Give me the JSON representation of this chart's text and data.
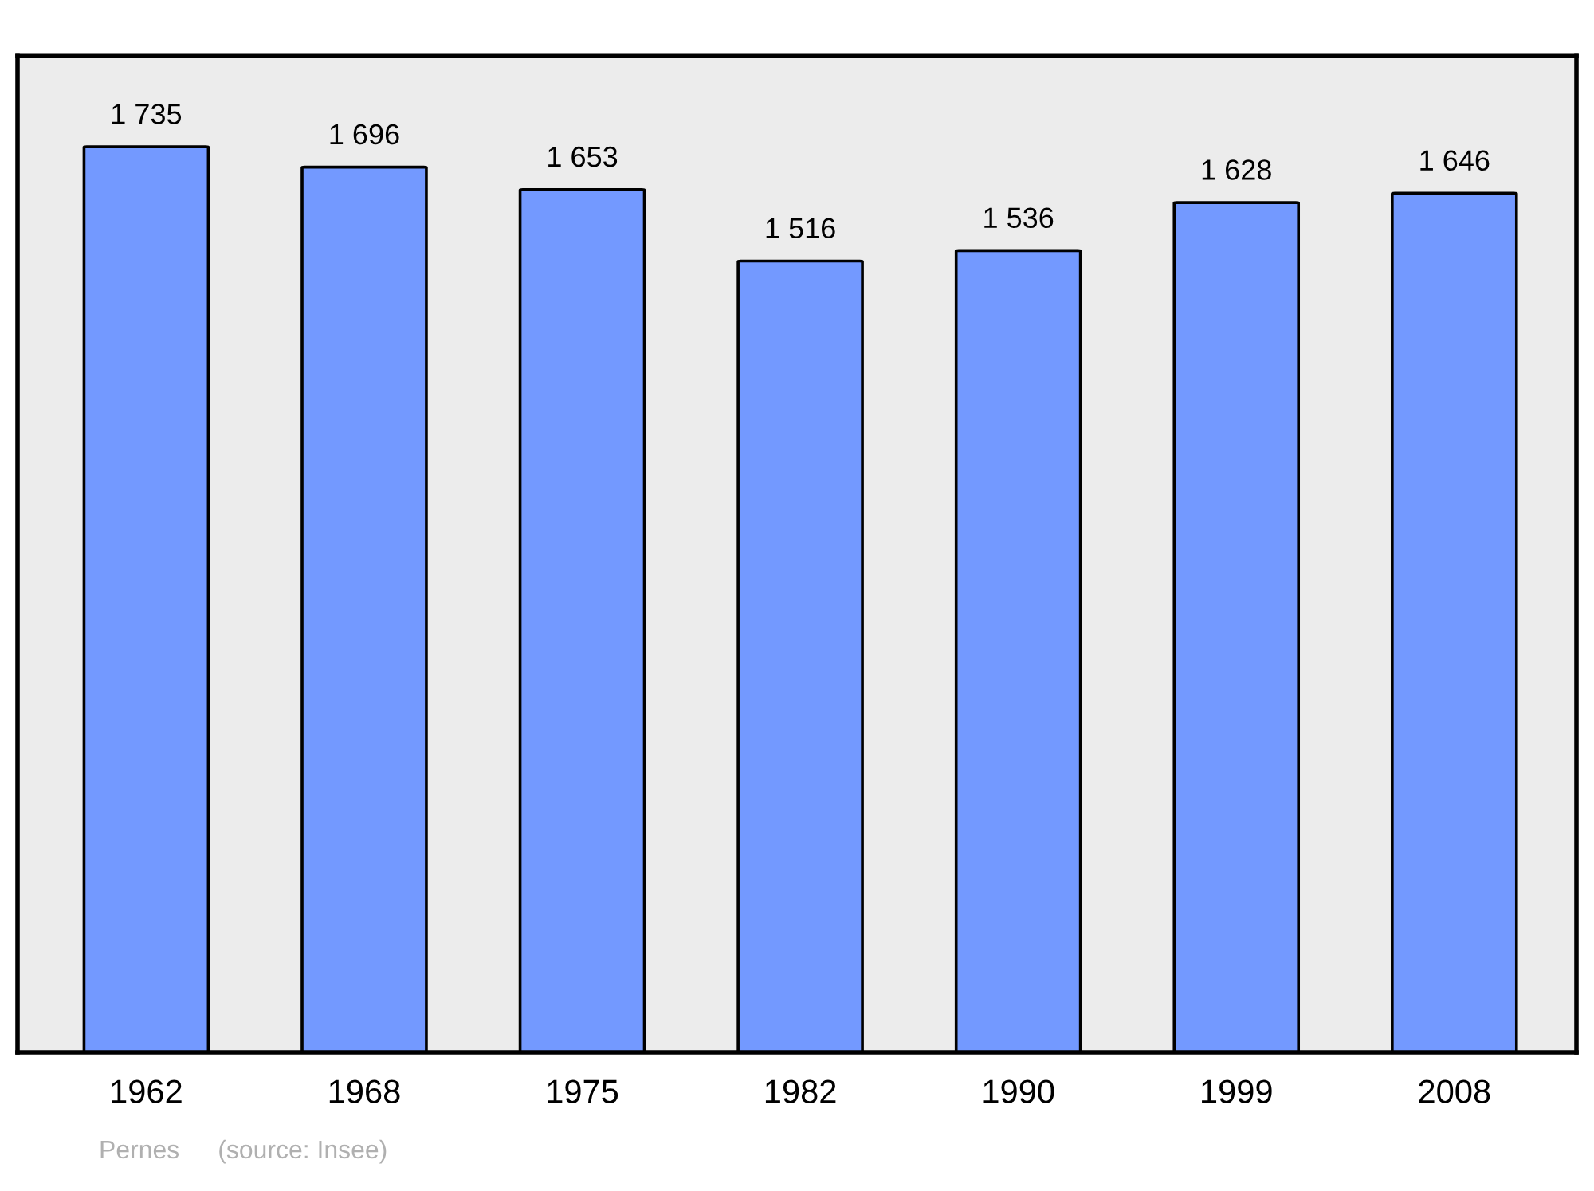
{
  "chart_data": {
    "type": "bar",
    "categories": [
      "1962",
      "1968",
      "1975",
      "1982",
      "1990",
      "1999",
      "2008"
    ],
    "values": [
      1735,
      1696,
      1653,
      1516,
      1536,
      1628,
      1646
    ],
    "value_labels": [
      "1 735",
      "1 696",
      "1 653",
      "1 516",
      "1 536",
      "1 628",
      "1 646"
    ],
    "color": "#7399ff",
    "ylim": [
      0,
      1909
    ],
    "tick_labels": "x",
    "grid": false,
    "legend": false,
    "annotations": [
      "Pernes",
      "(source: Insee)"
    ]
  }
}
